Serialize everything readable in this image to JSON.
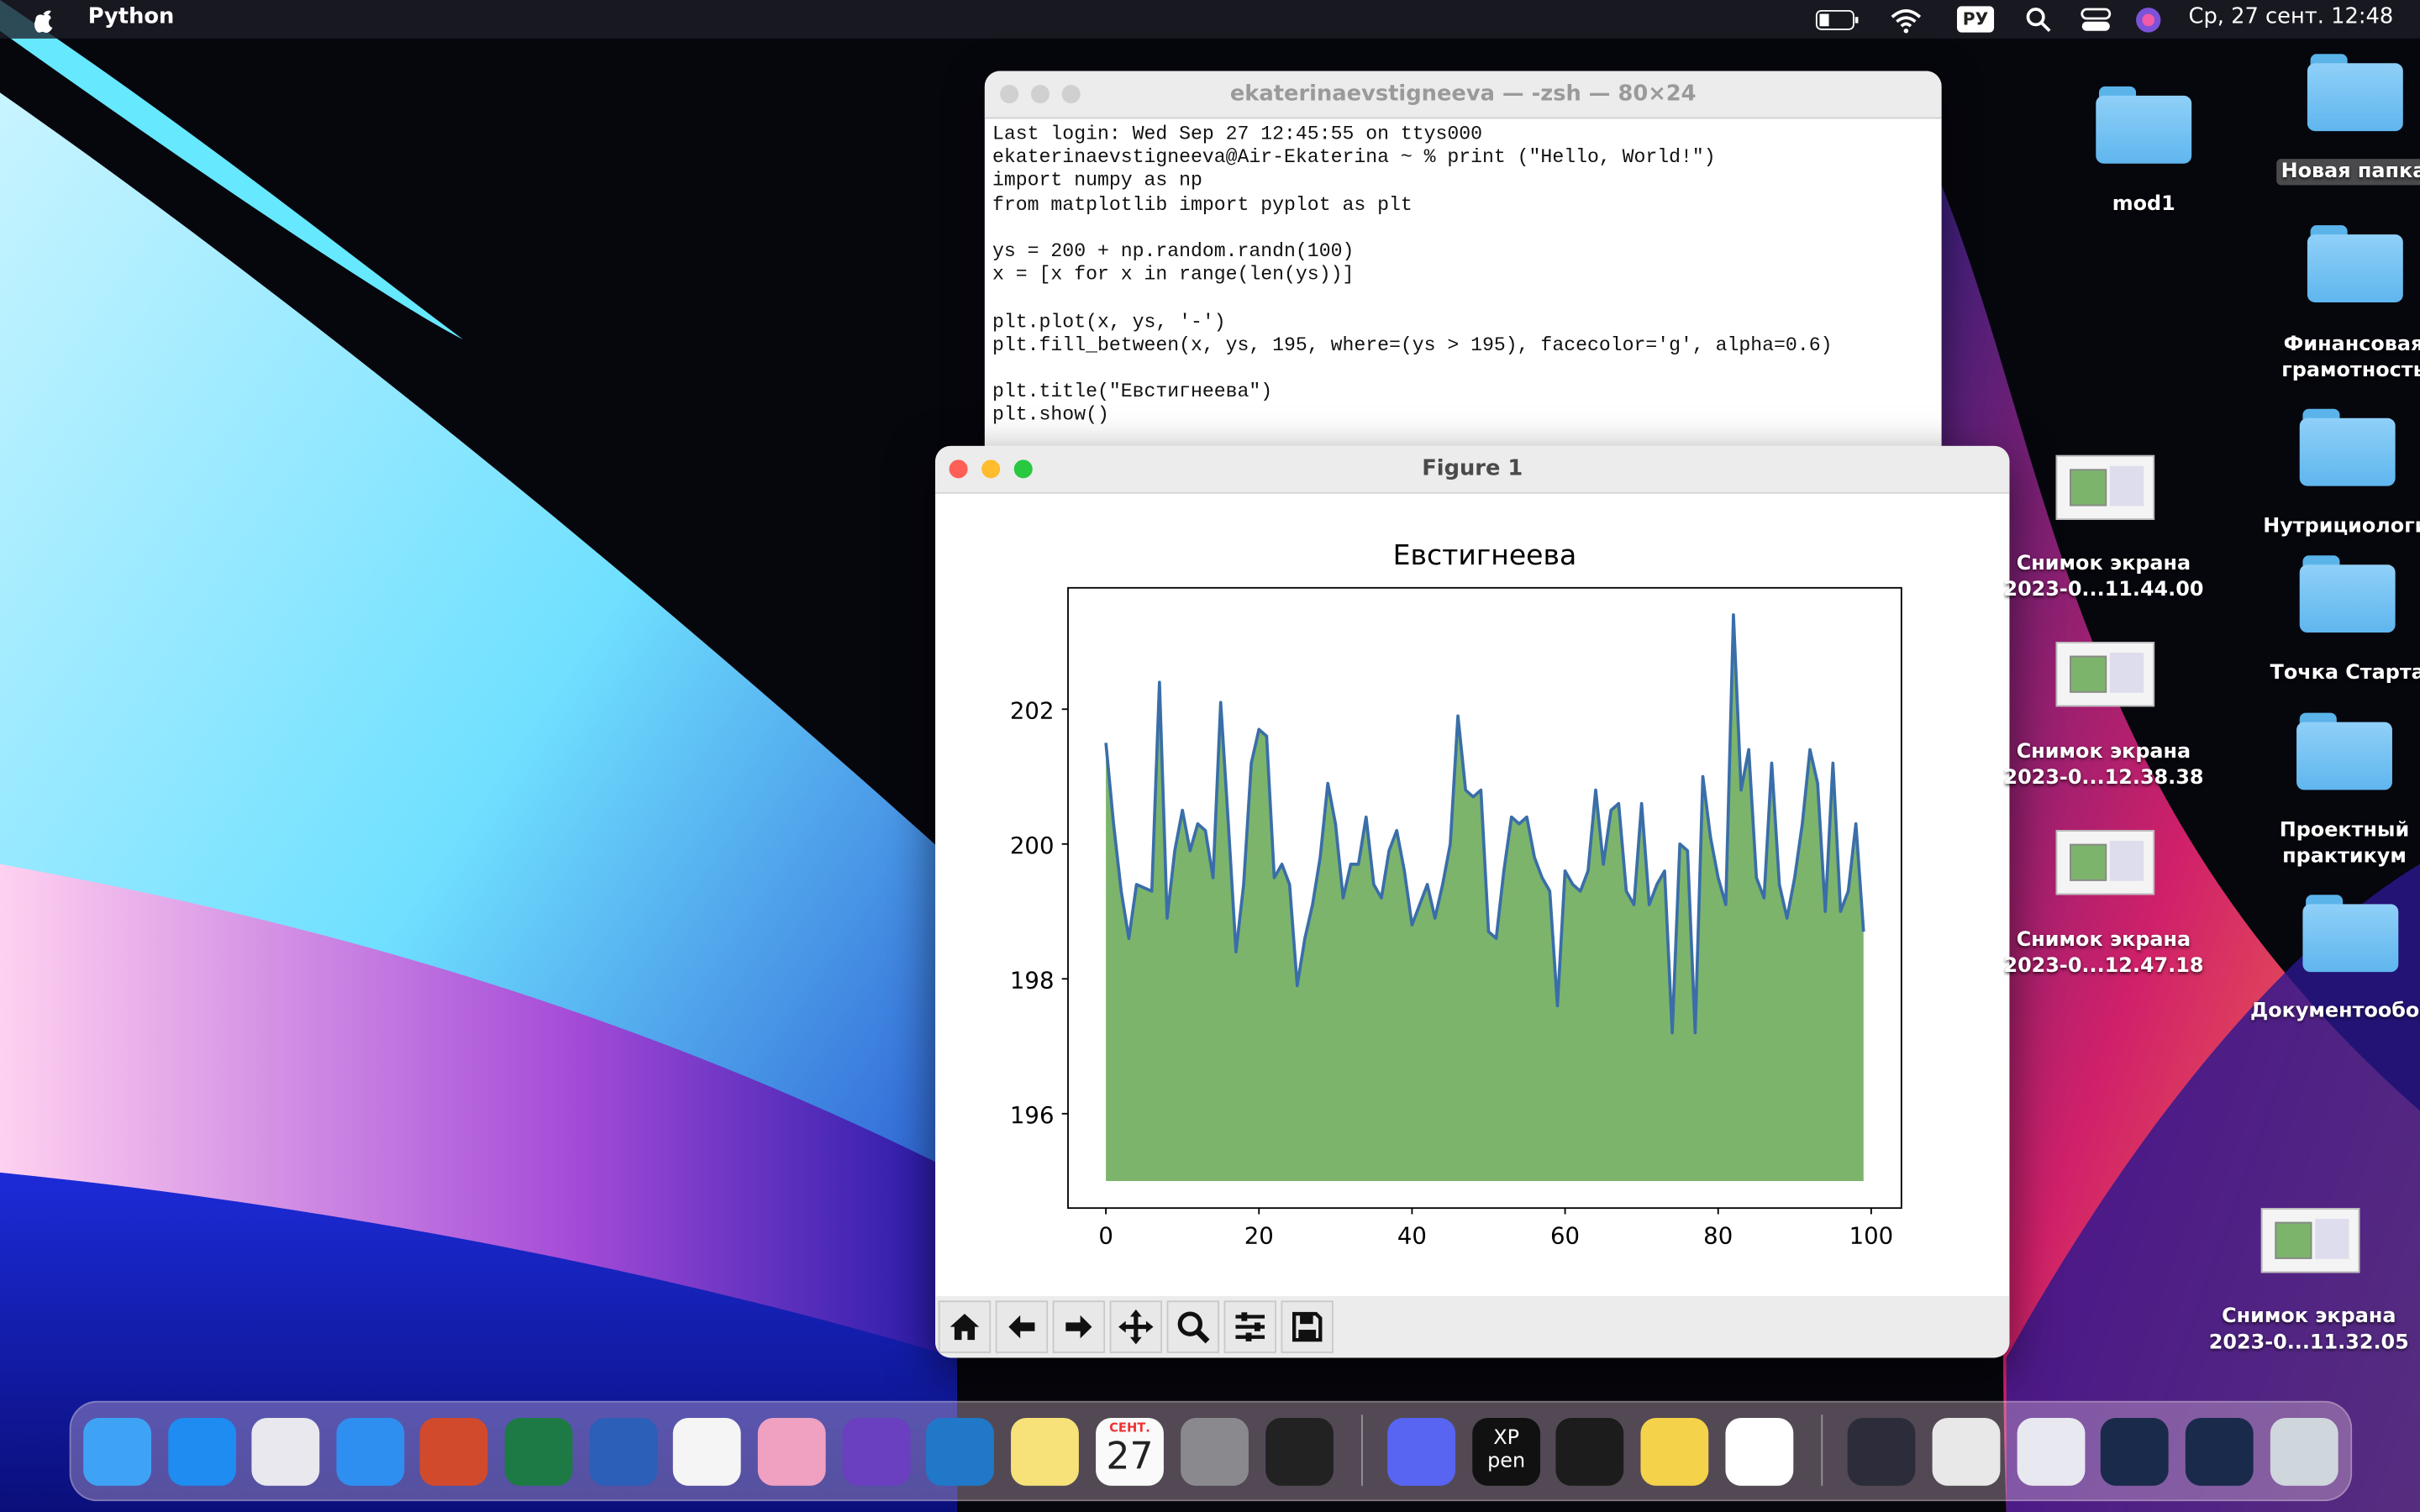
{
  "menu_bar": {
    "app": "Python",
    "input_source": "РУ",
    "clock": "Ср, 27 сент.  12:48"
  },
  "terminal": {
    "title": "ekaterinaevstigneeva — -zsh — 80×24",
    "blocks": [
      [
        "Last login: Wed Sep 27 12:45:55 on ttys000",
        "ekaterinaevstigneeva@Air-Ekaterina ~ % print (\"Hello, World!\")",
        "import numpy as np",
        "from matplotlib import pyplot as plt"
      ],
      [
        "ys = 200 + np.random.randn(100)",
        "x = [x for x in range(len(ys))]"
      ],
      [
        "plt.plot(x, ys, '-')",
        "plt.fill_between(x, ys, 195, where=(ys > 195), facecolor='g', alpha=0.6)"
      ],
      [
        "plt.title(\"Евстигнеева\")",
        "plt.show()"
      ]
    ]
  },
  "figure_window": {
    "title": "Figure 1",
    "chart_data": {
      "type": "line",
      "title": "Евстигнеева",
      "x": [
        0,
        1,
        2,
        3,
        4,
        5,
        6,
        7,
        8,
        9,
        10,
        11,
        12,
        13,
        14,
        15,
        16,
        17,
        18,
        19,
        20,
        21,
        22,
        23,
        24,
        25,
        26,
        27,
        28,
        29,
        30,
        31,
        32,
        33,
        34,
        35,
        36,
        37,
        38,
        39,
        40,
        41,
        42,
        43,
        44,
        45,
        46,
        47,
        48,
        49,
        50,
        51,
        52,
        53,
        54,
        55,
        56,
        57,
        58,
        59,
        60,
        61,
        62,
        63,
        64,
        65,
        66,
        67,
        68,
        69,
        70,
        71,
        72,
        73,
        74,
        75,
        76,
        77,
        78,
        79,
        80,
        81,
        82,
        83,
        84,
        85,
        86,
        87,
        88,
        89,
        90,
        91,
        92,
        93,
        94,
        95,
        96,
        97,
        98,
        99
      ],
      "values": [
        201.5,
        200.3,
        199.3,
        198.6,
        199.4,
        199.35,
        199.3,
        202.4,
        198.9,
        199.9,
        200.5,
        199.9,
        200.3,
        200.2,
        199.5,
        202.1,
        200.3,
        198.4,
        199.4,
        201.2,
        201.7,
        201.6,
        199.5,
        199.7,
        199.4,
        197.9,
        198.6,
        199.1,
        199.8,
        200.9,
        200.3,
        199.2,
        199.7,
        199.7,
        200.4,
        199.4,
        199.2,
        199.9,
        200.2,
        199.6,
        198.8,
        199.1,
        199.4,
        198.9,
        199.4,
        200.0,
        201.9,
        200.8,
        200.7,
        200.8,
        198.7,
        198.6,
        199.6,
        200.4,
        200.3,
        200.4,
        199.8,
        199.5,
        199.3,
        197.6,
        199.6,
        199.4,
        199.3,
        199.6,
        200.8,
        199.7,
        200.5,
        200.6,
        199.3,
        199.1,
        200.6,
        199.1,
        199.4,
        199.6,
        197.2,
        200.0,
        199.9,
        197.2,
        201.0,
        200.1,
        199.5,
        199.1,
        203.4,
        200.8,
        201.4,
        199.5,
        199.2,
        201.2,
        199.4,
        198.9,
        199.5,
        200.3,
        201.4,
        200.9,
        199.0,
        201.2,
        199.0,
        199.3,
        200.3,
        198.7
      ],
      "fill_baseline": 195,
      "line_color": "#3a6ea8",
      "fill_color": "#7db46c",
      "xlim": [
        -4.95,
        103.95
      ],
      "ylim": [
        194.6,
        203.8
      ],
      "xticks": [
        0,
        20,
        40,
        60,
        80,
        100
      ],
      "yticks": [
        196,
        198,
        200,
        202
      ]
    }
  },
  "desktop_icons": [
    {
      "label": "mod1"
    },
    {
      "label": "Новая папка"
    },
    {
      "label": "Финансовая грамотность"
    },
    {
      "label": "Нутрициологи"
    },
    {
      "label": "Точка Старта"
    },
    {
      "label": "Проектный практикум"
    },
    {
      "label": "Документооборот"
    },
    {
      "label": "Снимок экрана 2023-0...11.44.00"
    },
    {
      "label": "Снимок экрана 2023-0...12.38.38"
    },
    {
      "label": "Снимок экрана 2023-0...12.47.18"
    },
    {
      "label": "Снимок экрана 2023-0...11.32.05"
    }
  ],
  "dock": {
    "calendar_month": "СЕНТ.",
    "calendar_day": "27",
    "xp_pen": "XP pen"
  }
}
